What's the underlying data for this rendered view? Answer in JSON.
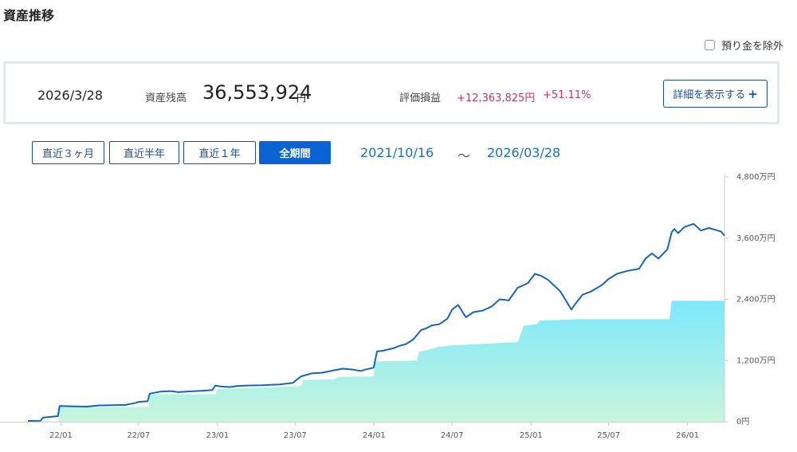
{
  "title": "資産推移",
  "exclude_deposit": {
    "label": "預り金を除外",
    "checked": false
  },
  "summary": {
    "date": "2026/3/28",
    "balance_label": "資産残高",
    "balance": "36,553,924",
    "balance_unit": "円",
    "pl_label": "評価損益",
    "pl_amount": "+12,363,825円",
    "pl_percent": "+51.11%",
    "detail_button": "詳細を表示する"
  },
  "periods": [
    {
      "label": "直近３ヶ月",
      "active": false
    },
    {
      "label": "直近半年",
      "active": false
    },
    {
      "label": "直近１年",
      "active": false
    },
    {
      "label": "全期間",
      "active": true
    }
  ],
  "range": {
    "from": "2021/10/16",
    "sep": "～",
    "to": "2026/03/28"
  },
  "colors": {
    "line": "#1565c0",
    "fill_top": "#7de8fb",
    "fill_bottom": "#c8f5dc",
    "accent_red": "#c8336b",
    "accent_blue": "#0b62d2"
  },
  "chart_data": {
    "type": "area",
    "x_start": "2021-10-16",
    "x_end": "2026-03-28",
    "x_ticks": [
      "22/01",
      "22/07",
      "23/01",
      "23/07",
      "24/01",
      "24/07",
      "25/01",
      "25/07",
      "26/01"
    ],
    "y_ticks": [
      "0円",
      "1,200万円",
      "2,400万円",
      "3,600万円",
      "4,800万円"
    ],
    "ylim": [
      0,
      4800
    ],
    "y_unit": "万円",
    "grid": false,
    "series": [
      {
        "role": "evaluation",
        "style": "line",
        "points": [
          [
            "2021-10-16",
            15
          ],
          [
            "2021-11-15",
            20
          ],
          [
            "2021-11-20",
            80
          ],
          [
            "2021-12-25",
            110
          ],
          [
            "2021-12-29",
            310
          ],
          [
            "2022-02-01",
            300
          ],
          [
            "2022-03-01",
            295
          ],
          [
            "2022-04-01",
            320
          ],
          [
            "2022-05-01",
            325
          ],
          [
            "2022-06-01",
            330
          ],
          [
            "2022-06-25",
            370
          ],
          [
            "2022-07-01",
            390
          ],
          [
            "2022-07-22",
            400
          ],
          [
            "2022-07-27",
            550
          ],
          [
            "2022-08-20",
            590
          ],
          [
            "2022-09-15",
            600
          ],
          [
            "2022-10-01",
            580
          ],
          [
            "2022-11-01",
            595
          ],
          [
            "2022-12-01",
            610
          ],
          [
            "2022-12-20",
            620
          ],
          [
            "2022-12-27",
            710
          ],
          [
            "2023-01-10",
            690
          ],
          [
            "2023-01-30",
            680
          ],
          [
            "2023-02-15",
            700
          ],
          [
            "2023-03-10",
            710
          ],
          [
            "2023-04-15",
            715
          ],
          [
            "2023-05-25",
            730
          ],
          [
            "2023-06-15",
            750
          ],
          [
            "2023-06-25",
            760
          ],
          [
            "2023-07-15",
            890
          ],
          [
            "2023-08-10",
            950
          ],
          [
            "2023-09-01",
            960
          ],
          [
            "2023-10-01",
            1010
          ],
          [
            "2023-10-20",
            1040
          ],
          [
            "2023-11-15",
            1020
          ],
          [
            "2023-12-01",
            995
          ],
          [
            "2023-12-10",
            1020
          ],
          [
            "2023-12-31",
            1060
          ],
          [
            "2024-01-08",
            1380
          ],
          [
            "2024-01-20",
            1390
          ],
          [
            "2024-02-15",
            1440
          ],
          [
            "2024-03-01",
            1490
          ],
          [
            "2024-03-15",
            1520
          ],
          [
            "2024-04-01",
            1610
          ],
          [
            "2024-04-20",
            1800
          ],
          [
            "2024-05-01",
            1830
          ],
          [
            "2024-05-15",
            1890
          ],
          [
            "2024-06-01",
            1910
          ],
          [
            "2024-06-20",
            2020
          ],
          [
            "2024-07-01",
            2200
          ],
          [
            "2024-07-15",
            2290
          ],
          [
            "2024-08-02",
            2050
          ],
          [
            "2024-08-20",
            2150
          ],
          [
            "2024-09-10",
            2180
          ],
          [
            "2024-10-01",
            2260
          ],
          [
            "2024-10-20",
            2400
          ],
          [
            "2024-11-10",
            2380
          ],
          [
            "2024-12-01",
            2630
          ],
          [
            "2024-12-10",
            2660
          ],
          [
            "2024-12-25",
            2720
          ],
          [
            "2025-01-10",
            2900
          ],
          [
            "2025-01-25",
            2860
          ],
          [
            "2025-02-10",
            2780
          ],
          [
            "2025-03-10",
            2560
          ],
          [
            "2025-04-05",
            2200
          ],
          [
            "2025-04-15",
            2320
          ],
          [
            "2025-05-01",
            2490
          ],
          [
            "2025-05-20",
            2550
          ],
          [
            "2025-06-15",
            2680
          ],
          [
            "2025-07-01",
            2800
          ],
          [
            "2025-07-20",
            2900
          ],
          [
            "2025-08-15",
            2960
          ],
          [
            "2025-09-10",
            3000
          ],
          [
            "2025-09-25",
            3200
          ],
          [
            "2025-10-10",
            3300
          ],
          [
            "2025-10-25",
            3200
          ],
          [
            "2025-11-15",
            3380
          ],
          [
            "2025-11-25",
            3720
          ],
          [
            "2025-12-01",
            3780
          ],
          [
            "2025-12-10",
            3700
          ],
          [
            "2025-12-25",
            3820
          ],
          [
            "2026-01-15",
            3880
          ],
          [
            "2026-02-01",
            3750
          ],
          [
            "2026-02-20",
            3800
          ],
          [
            "2026-03-20",
            3730
          ],
          [
            "2026-03-28",
            3650
          ]
        ]
      },
      {
        "role": "principal",
        "style": "area",
        "points": [
          [
            "2021-10-16",
            0
          ],
          [
            "2021-12-27",
            0
          ],
          [
            "2021-12-29",
            290
          ],
          [
            "2022-07-25",
            290
          ],
          [
            "2022-07-27",
            540
          ],
          [
            "2022-12-28",
            540
          ],
          [
            "2022-12-30",
            620
          ],
          [
            "2023-01-01",
            640
          ],
          [
            "2023-07-15",
            700
          ],
          [
            "2023-07-20",
            820
          ],
          [
            "2023-10-01",
            830
          ],
          [
            "2023-10-10",
            880
          ],
          [
            "2023-12-31",
            890
          ],
          [
            "2024-01-03",
            1180
          ],
          [
            "2024-04-10",
            1200
          ],
          [
            "2024-04-15",
            1370
          ],
          [
            "2024-05-15",
            1430
          ],
          [
            "2024-06-01",
            1470
          ],
          [
            "2024-07-01",
            1500
          ],
          [
            "2024-12-01",
            1560
          ],
          [
            "2024-12-15",
            1880
          ],
          [
            "2025-01-15",
            1910
          ],
          [
            "2025-01-20",
            1980
          ],
          [
            "2025-04-20",
            2010
          ],
          [
            "2025-11-20",
            2010
          ],
          [
            "2025-11-25",
            2370
          ],
          [
            "2026-03-28",
            2370
          ]
        ]
      }
    ]
  }
}
